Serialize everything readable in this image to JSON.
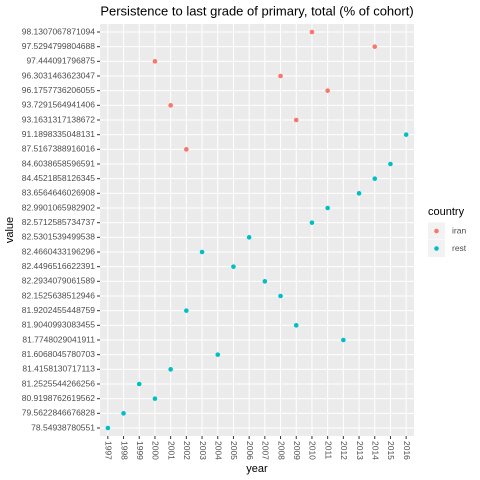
{
  "chart_data": {
    "type": "scatter",
    "title": "Persistence to last grade of primary, total (% of cohort)",
    "x_label": "year",
    "y_label": "value",
    "y_scale": "discrete",
    "xlim": [
      1996.5,
      2016.5
    ],
    "xticks": [
      1997,
      1998,
      1999,
      2000,
      2001,
      2002,
      2003,
      2004,
      2005,
      2006,
      2007,
      2008,
      2009,
      2010,
      2011,
      2012,
      2013,
      2014,
      2015,
      2016
    ],
    "yticks": [
      98.1307067871094,
      97.5294799804688,
      97.444091796875,
      96.3031463623047,
      96.1757736206055,
      93.7291564941406,
      93.1631317138672,
      91.1898335048131,
      87.5167388916016,
      84.6038658596591,
      84.4521858126345,
      83.6564646026908,
      82.9901065982902,
      82.5712585734737,
      82.5301539499538,
      82.4660433196296,
      82.4496516622391,
      82.2934079061589,
      82.1525638512946,
      81.9202455448759,
      81.9040993083455,
      81.7748029041911,
      81.6068045780703,
      81.4158130717113,
      81.2525544266256,
      80.9198762619562,
      79.5622846676828,
      78.54938780551
    ],
    "grid": true,
    "legend_title": "country",
    "legend_position": "right",
    "series": [
      {
        "name": "iran",
        "color": "#F8766D",
        "x": [
          2000,
          2001,
          2002,
          2008,
          2009,
          2010,
          2011,
          2014
        ],
        "values": [
          97.444091796875,
          93.7291564941406,
          87.5167388916016,
          96.3031463623047,
          93.1631317138672,
          98.1307067871094,
          96.1757736206055,
          97.5294799804688
        ]
      },
      {
        "name": "rest",
        "color": "#00BFC4",
        "x": [
          1997,
          1998,
          1999,
          2000,
          2001,
          2002,
          2003,
          2004,
          2005,
          2006,
          2007,
          2008,
          2009,
          2010,
          2011,
          2012,
          2013,
          2014,
          2015,
          2016
        ],
        "values": [
          78.54938780551,
          79.5622846676828,
          81.2525544266256,
          80.9198762619562,
          81.4158130717113,
          81.9202455448759,
          82.4660433196296,
          81.6068045780703,
          82.4496516622391,
          82.5301539499538,
          82.2934079061589,
          82.1525638512946,
          81.9040993083455,
          82.5712585734737,
          82.9901065982902,
          81.7748029041911,
          83.6564646026908,
          84.4521858126345,
          84.6038658596591,
          91.1898335048131
        ]
      }
    ]
  }
}
